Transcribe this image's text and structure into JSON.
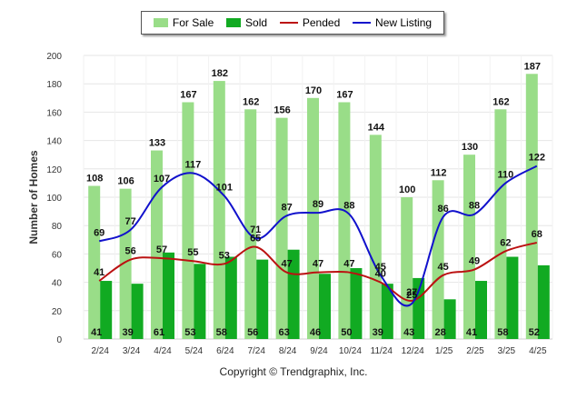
{
  "chart_data": {
    "type": "bar",
    "ylabel": "Number of Homes",
    "ylim": [
      0,
      200
    ],
    "yticks": [
      0,
      20,
      40,
      60,
      80,
      100,
      120,
      140,
      160,
      180,
      200
    ],
    "grid": true,
    "legend_position": "top-center",
    "categories": [
      "2/24",
      "3/24",
      "4/24",
      "5/24",
      "6/24",
      "7/24",
      "8/24",
      "9/24",
      "10/24",
      "11/24",
      "12/24",
      "1/25",
      "2/25",
      "3/25",
      "4/25"
    ],
    "series": [
      {
        "name": "For Sale",
        "type": "bar",
        "color": "#99dd88",
        "values": [
          108,
          106,
          133,
          167,
          182,
          162,
          156,
          170,
          167,
          144,
          100,
          112,
          130,
          162,
          187
        ]
      },
      {
        "name": "Sold",
        "type": "bar",
        "color": "#11aa22",
        "values": [
          41,
          39,
          61,
          53,
          58,
          56,
          63,
          46,
          50,
          39,
          43,
          28,
          41,
          58,
          52
        ]
      },
      {
        "name": "Pended",
        "type": "line",
        "color": "#bb1111",
        "values": [
          41,
          56,
          57,
          55,
          53,
          65,
          47,
          47,
          47,
          40,
          27,
          45,
          49,
          62,
          68
        ]
      },
      {
        "name": "New Listing",
        "type": "line",
        "color": "#1111cc",
        "values": [
          69,
          77,
          107,
          117,
          101,
          71,
          87,
          89,
          88,
          45,
          25,
          86,
          88,
          110,
          122
        ]
      }
    ]
  },
  "footer": {
    "copyright": "Copyright © Trendgraphix, Inc."
  }
}
